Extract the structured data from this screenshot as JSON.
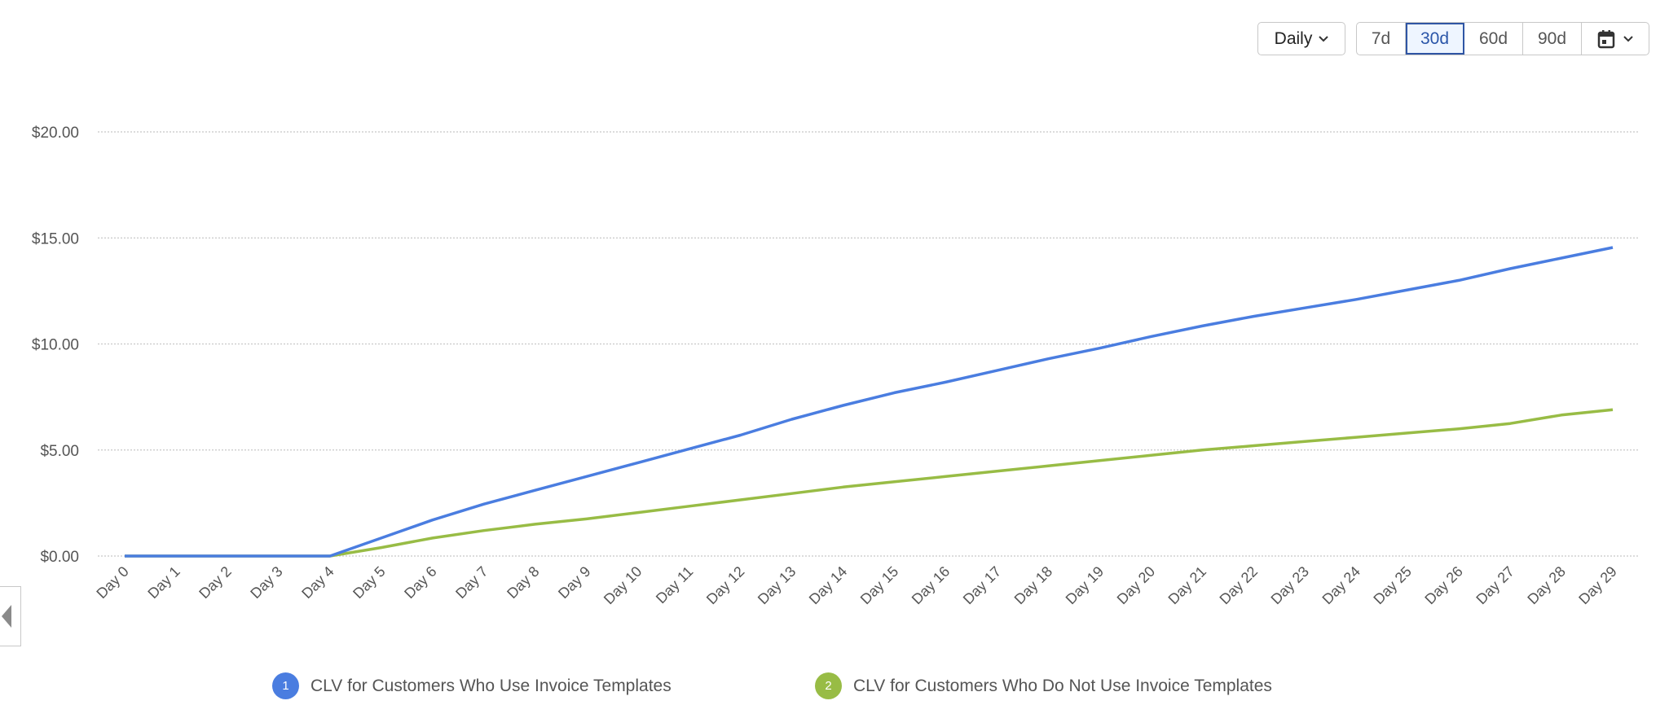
{
  "controls": {
    "granularity": "Daily",
    "ranges": [
      "7d",
      "30d",
      "60d",
      "90d"
    ],
    "active_range": "30d",
    "calendar_icon": "calendar-icon"
  },
  "chart_data": {
    "type": "line",
    "x": [
      "Day 0",
      "Day 1",
      "Day 2",
      "Day 3",
      "Day 4",
      "Day 5",
      "Day 6",
      "Day 7",
      "Day 8",
      "Day 9",
      "Day 10",
      "Day 11",
      "Day 12",
      "Day 13",
      "Day 14",
      "Day 15",
      "Day 16",
      "Day 17",
      "Day 18",
      "Day 19",
      "Day 20",
      "Day 21",
      "Day 22",
      "Day 23",
      "Day 24",
      "Day 25",
      "Day 26",
      "Day 27",
      "Day 28",
      "Day 29"
    ],
    "yticks": [
      "$0.00",
      "$5.00",
      "$10.00",
      "$15.00",
      "$20.00"
    ],
    "ylim": [
      0,
      20
    ],
    "grid": true,
    "legend_position": "bottom",
    "series": [
      {
        "name": "CLV for Customers Who Use Invoice Templates",
        "badge": "1",
        "color": "#4a7de0",
        "values": [
          0,
          0,
          0,
          0,
          0,
          0.85,
          1.7,
          2.45,
          3.1,
          3.75,
          4.4,
          5.05,
          5.7,
          6.45,
          7.1,
          7.7,
          8.2,
          8.75,
          9.3,
          9.8,
          10.35,
          10.85,
          11.3,
          11.7,
          12.1,
          12.55,
          13.0,
          13.55,
          14.05,
          14.55
        ]
      },
      {
        "name": "CLV for Customers Who Do Not Use Invoice Templates",
        "badge": "2",
        "color": "#98bc45",
        "values": [
          0,
          0,
          0,
          0,
          0,
          0.4,
          0.85,
          1.2,
          1.5,
          1.75,
          2.05,
          2.35,
          2.65,
          2.95,
          3.25,
          3.5,
          3.75,
          4.0,
          4.25,
          4.5,
          4.75,
          5.0,
          5.2,
          5.4,
          5.6,
          5.8,
          6.0,
          6.25,
          6.65,
          6.9
        ]
      }
    ]
  }
}
